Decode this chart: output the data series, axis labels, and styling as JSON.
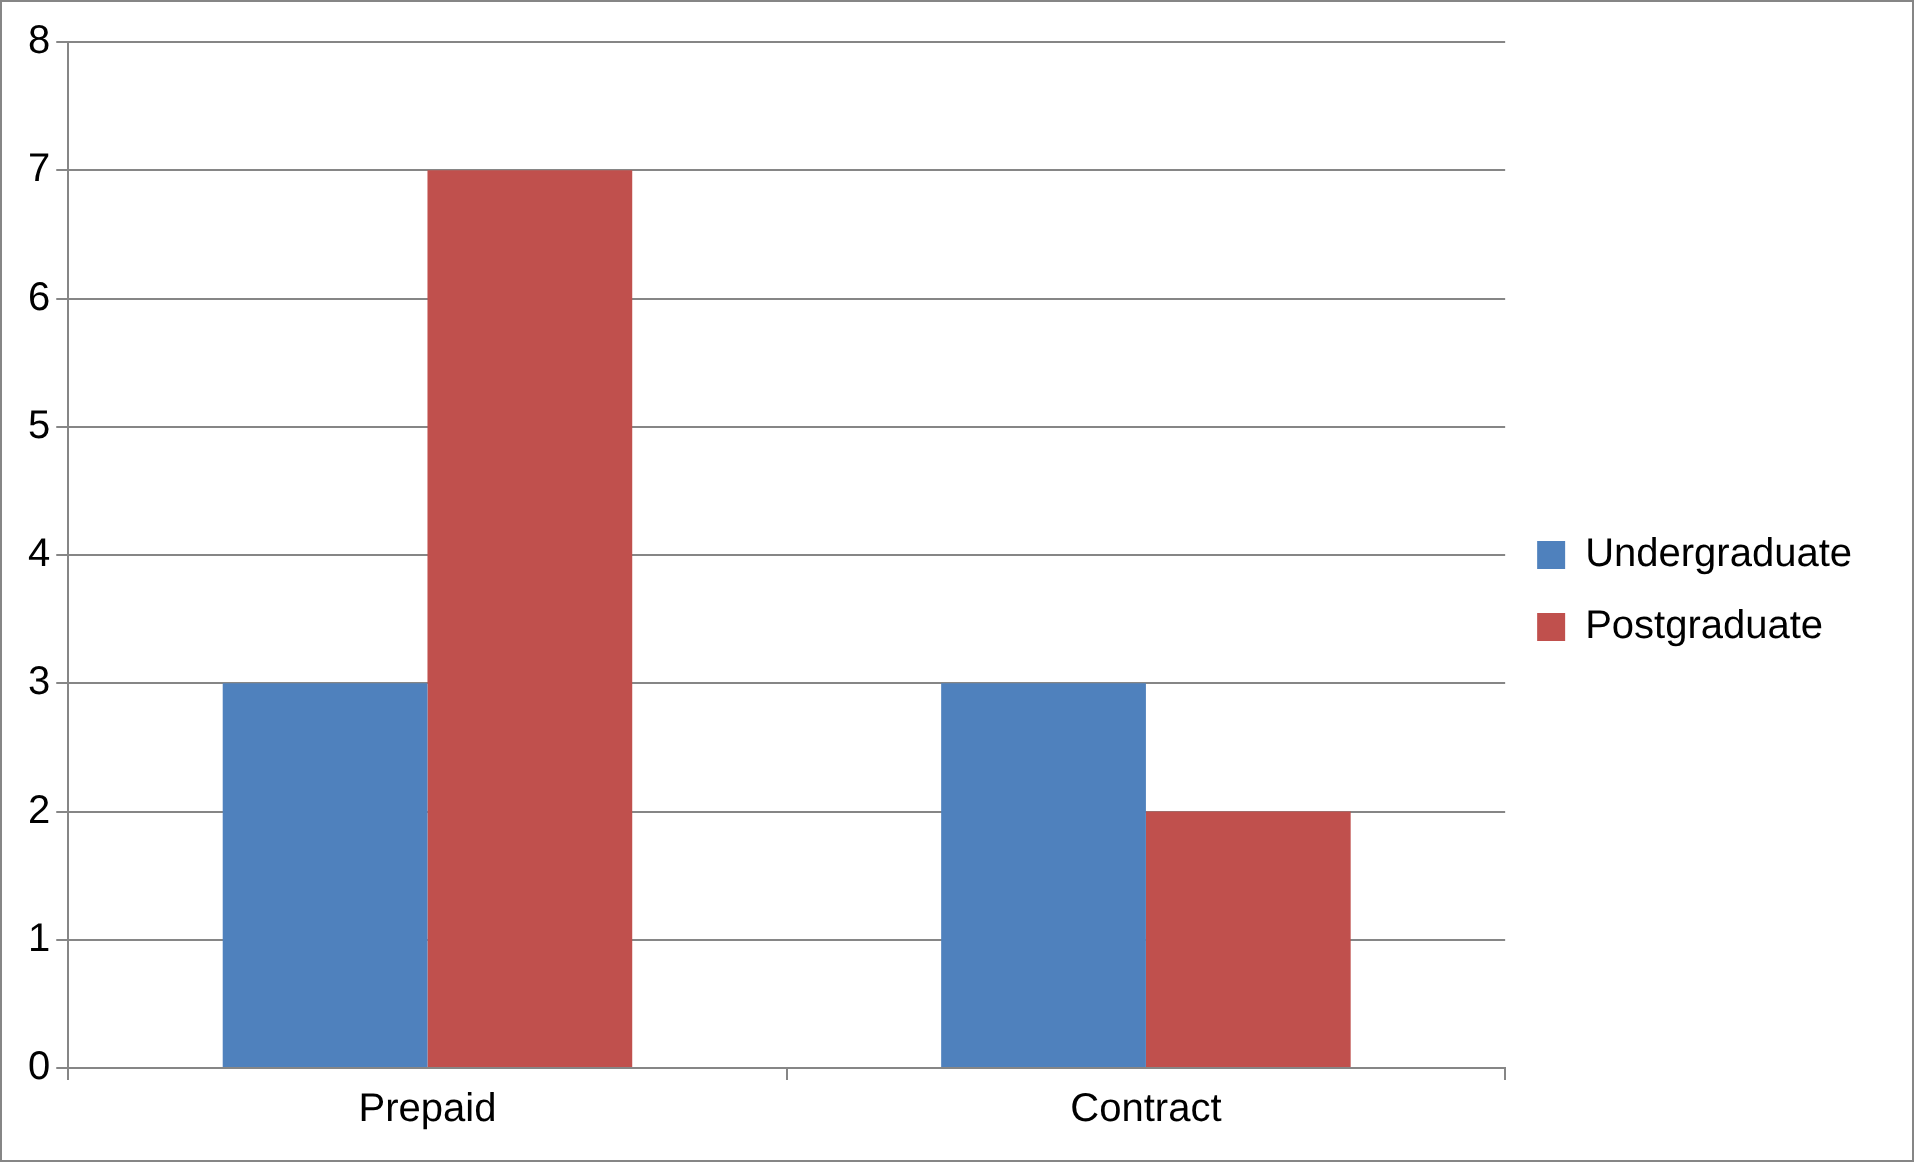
{
  "chart_data": {
    "type": "bar",
    "categories": [
      "Prepaid",
      "Contract"
    ],
    "series": [
      {
        "name": "Undergraduate",
        "color": "#4f81bd",
        "values": [
          3,
          3
        ]
      },
      {
        "name": "Postgraduate",
        "color": "#c0504d",
        "values": [
          7,
          2
        ]
      }
    ],
    "ylim": [
      0,
      8
    ],
    "yticks": [
      0,
      1,
      2,
      3,
      4,
      5,
      6,
      7,
      8
    ],
    "grid": "y",
    "legend": "right"
  }
}
